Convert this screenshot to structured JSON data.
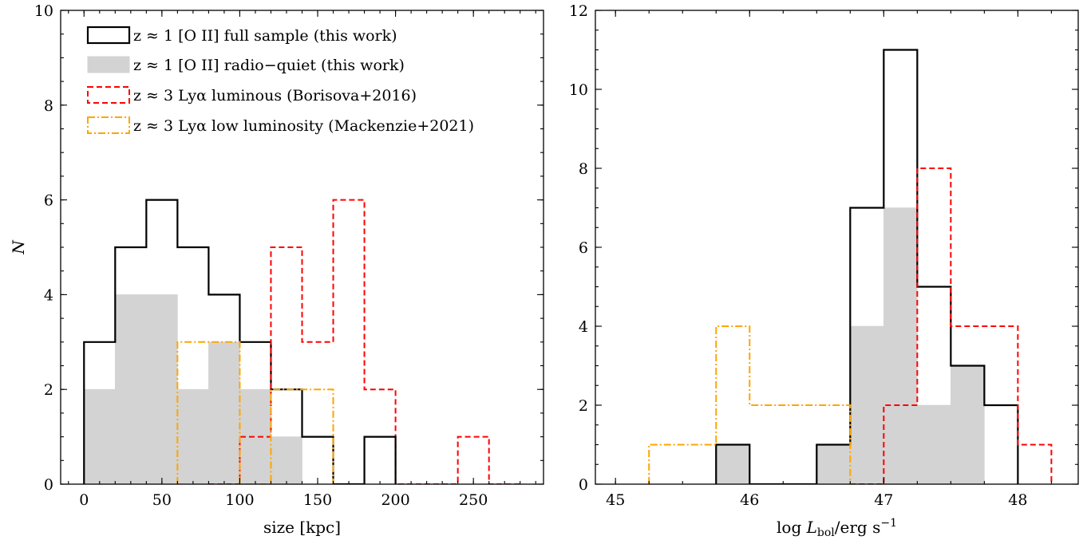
{
  "chart_data": [
    {
      "type": "histogram",
      "panel": "left",
      "xlabel": "size [kpc]",
      "ylabel": "N",
      "xlim": [
        -15,
        295
      ],
      "ylim": [
        0,
        10
      ],
      "xticks": [
        0,
        50,
        100,
        150,
        200,
        250
      ],
      "yticks": [
        0,
        2,
        4,
        6,
        8,
        10
      ],
      "grid": false,
      "legend": {
        "placement": "top-left",
        "entries": [
          {
            "label": "z ≈ 1 [O II] full sample (this work)",
            "series": 0
          },
          {
            "label": "z ≈ 1 [O II] radio−quiet (this work)",
            "series": 1
          },
          {
            "label": "z ≈ 3 Lyα luminous (Borisova+2016)",
            "series": 2
          },
          {
            "label": "z ≈ 3 Lyα low luminosity (Mackenzie+2021)",
            "series": 3
          }
        ]
      },
      "series": [
        {
          "style": "solid",
          "color": "#000000",
          "bin_edges": [
            0,
            20,
            40,
            60,
            80,
            100,
            120,
            140,
            160
          ],
          "counts": [
            3,
            5,
            6,
            5,
            4,
            3,
            2,
            1
          ]
        },
        {
          "style": "filled",
          "color": "#d3d3d3",
          "bin_edges": [
            0,
            20,
            40,
            60,
            80,
            100,
            120,
            140
          ],
          "counts": [
            2,
            4,
            4,
            2,
            3,
            2,
            1
          ]
        },
        {
          "style": "dashed",
          "color": "#ff0000",
          "bin_edges": [
            80,
            100,
            120,
            140,
            160,
            180,
            200,
            220,
            240,
            260,
            280
          ],
          "counts": [
            0,
            1,
            5,
            3,
            6,
            2,
            0,
            0,
            1,
            0
          ]
        },
        {
          "style": "dashdot",
          "color": "#ffa500",
          "bin_edges": [
            60,
            80,
            100,
            120,
            140,
            160,
            180,
            200
          ],
          "counts": [
            3,
            3,
            0,
            2,
            2,
            0,
            1
          ]
        },
        {
          "style": "solid-overlay",
          "color": "#000000",
          "bin_edges": [
            160,
            180,
            200
          ],
          "counts": [
            0,
            1
          ]
        }
      ]
    },
    {
      "type": "histogram",
      "panel": "right",
      "xlabel": "log L_bol/erg s^-1",
      "ylabel": "",
      "xlim": [
        44.85,
        48.45
      ],
      "ylim": [
        0,
        12
      ],
      "xticks": [
        45,
        46,
        47,
        48
      ],
      "yticks": [
        0,
        2,
        4,
        6,
        8,
        10,
        12
      ],
      "grid": false,
      "series": [
        {
          "style": "solid",
          "color": "#000000",
          "bin_edges": [
            45.75,
            46.0,
            46.25,
            46.5,
            46.75,
            47.0,
            47.25,
            47.5,
            47.75,
            48.0
          ],
          "counts": [
            1,
            0,
            0,
            1,
            7,
            11,
            5,
            3,
            2
          ]
        },
        {
          "style": "filled",
          "color": "#d3d3d3",
          "bin_edges": [
            45.75,
            46.0,
            46.25,
            46.5,
            46.75,
            47.0,
            47.25,
            47.5,
            47.75
          ],
          "counts": [
            1,
            0,
            0,
            1,
            4,
            7,
            2,
            3
          ]
        },
        {
          "style": "dashed",
          "color": "#ff0000",
          "bin_edges": [
            46.75,
            47.0,
            47.25,
            47.5,
            47.75,
            48.0,
            48.25
          ],
          "counts": [
            0,
            2,
            8,
            4,
            4,
            1
          ]
        },
        {
          "style": "dashdot",
          "color": "#ffa500",
          "bin_edges": [
            45.25,
            45.5,
            45.75,
            46.0,
            46.25,
            46.5,
            46.75
          ],
          "counts": [
            1,
            1,
            4,
            2,
            2,
            2
          ]
        }
      ]
    }
  ]
}
